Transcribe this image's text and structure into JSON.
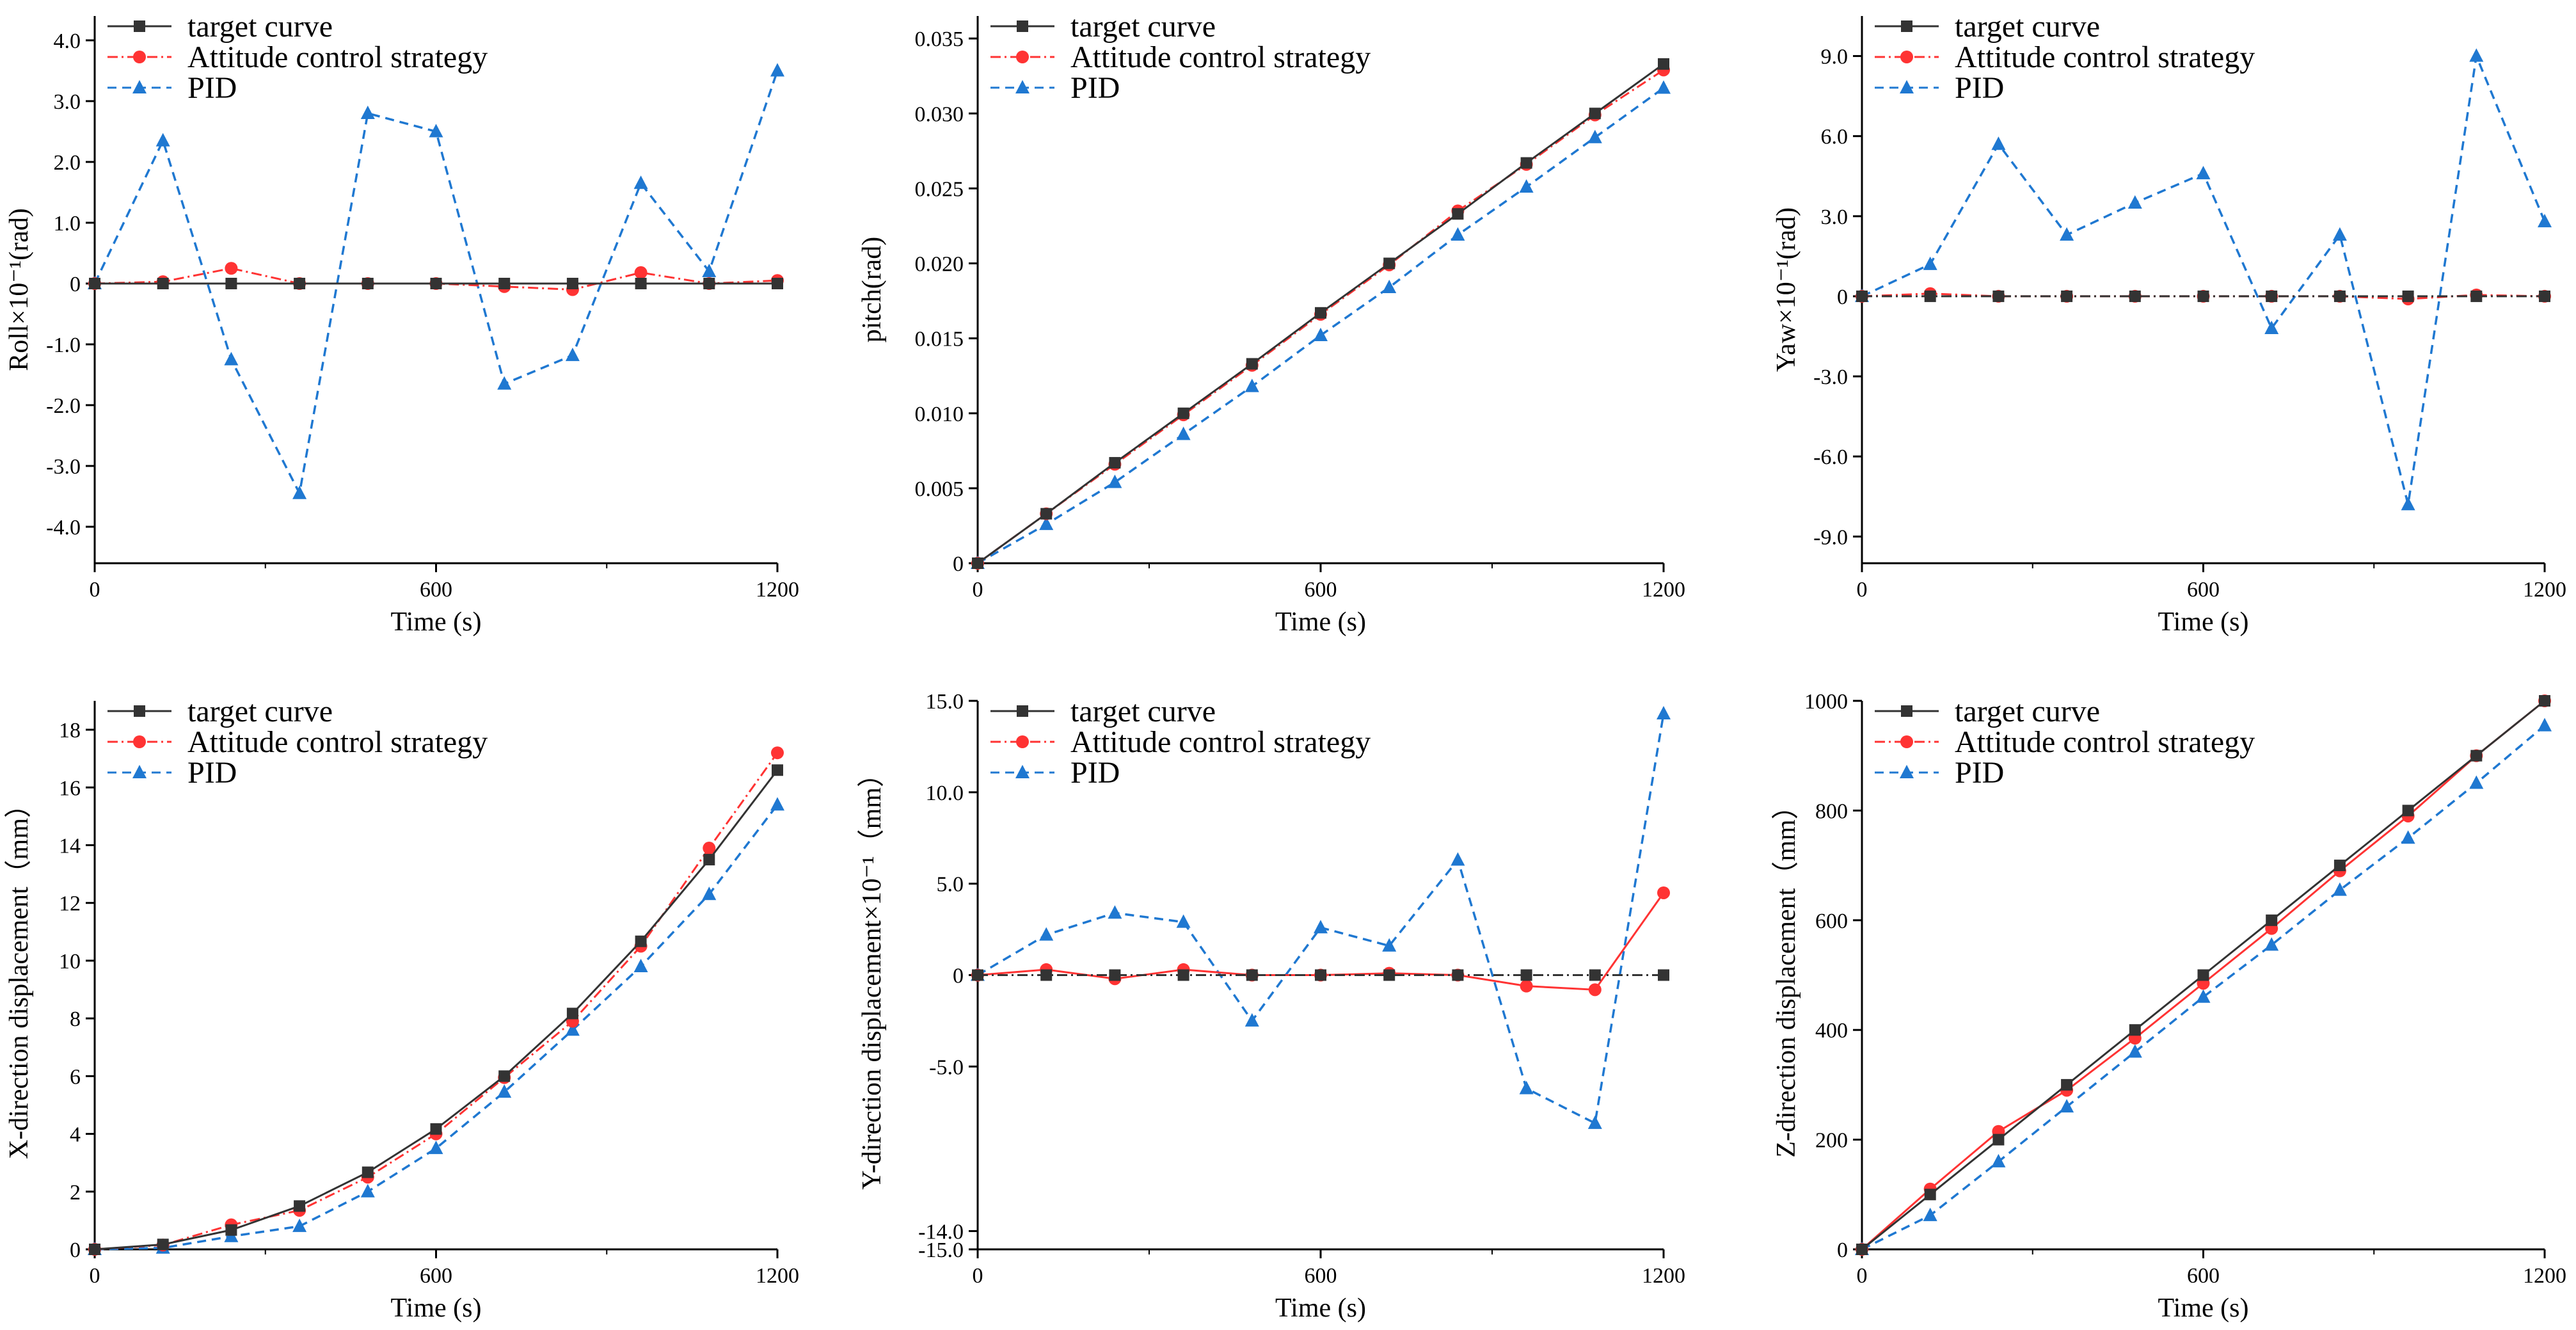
{
  "figure": {
    "colors": {
      "target": "#333333",
      "strategy": "#ff3333",
      "pid": "#1f78d1",
      "axis": "#000000"
    },
    "legend": {
      "target": "target curve",
      "strategy": "Attitude control strategy",
      "pid": "PID"
    }
  },
  "chart_data": [
    {
      "id": "roll",
      "type": "line",
      "title": "",
      "xlabel": "Time (s)",
      "ylabel": "Roll×10⁻¹(rad)",
      "xlim": [
        0,
        1200
      ],
      "ylim": [
        -4.6,
        4.4
      ],
      "xticks": [
        0,
        600,
        1200
      ],
      "xtick_labels": [
        "0",
        "600",
        "1200"
      ],
      "yticks": [
        -4,
        -3,
        -2,
        -1,
        0,
        1,
        2,
        3,
        4
      ],
      "ytick_labels": [
        "-4.0",
        "-3.0",
        "-2.0",
        "-1.0",
        "0",
        "1.0",
        "2.0",
        "3.0",
        "4.0"
      ],
      "x": [
        0,
        120,
        240,
        360,
        480,
        600,
        720,
        840,
        960,
        1080,
        1200
      ],
      "series": [
        {
          "name": "target curve",
          "key": "target",
          "values": [
            0,
            0,
            0,
            0,
            0,
            0,
            0,
            0,
            0,
            0,
            0
          ]
        },
        {
          "name": "Attitude control strategy",
          "key": "strategy",
          "values": [
            0,
            0.03,
            0.25,
            0,
            0,
            0,
            -0.05,
            -0.1,
            0.18,
            0,
            0.05
          ]
        },
        {
          "name": "PID",
          "key": "pid",
          "values": [
            0,
            2.35,
            -1.25,
            -3.45,
            2.8,
            2.5,
            -1.65,
            -1.18,
            1.65,
            0.2,
            3.5
          ]
        }
      ]
    },
    {
      "id": "pitch",
      "type": "line",
      "title": "",
      "xlabel": "Time (s)",
      "ylabel": "pitch(rad)",
      "xlim": [
        0,
        1200
      ],
      "ylim": [
        0,
        0.0365
      ],
      "xticks": [
        0,
        600,
        1200
      ],
      "xtick_labels": [
        "0",
        "600",
        "1200"
      ],
      "yticks": [
        0,
        0.005,
        0.01,
        0.015,
        0.02,
        0.025,
        0.03,
        0.035
      ],
      "ytick_labels": [
        "0",
        "0.005",
        "0.010",
        "0.015",
        "0.020",
        "0.025",
        "0.030",
        "0.035"
      ],
      "x": [
        0,
        120,
        240,
        360,
        480,
        600,
        720,
        840,
        960,
        1080,
        1200
      ],
      "series": [
        {
          "name": "target curve",
          "key": "target",
          "values": [
            0,
            0.0033,
            0.0067,
            0.01,
            0.0133,
            0.0167,
            0.02,
            0.0233,
            0.0267,
            0.03,
            0.0333
          ]
        },
        {
          "name": "Attitude control strategy",
          "key": "strategy",
          "values": [
            0,
            0.0033,
            0.0066,
            0.0099,
            0.0132,
            0.0166,
            0.0199,
            0.0235,
            0.0266,
            0.0299,
            0.0329
          ]
        },
        {
          "name": "PID",
          "key": "pid",
          "values": [
            0,
            0.0026,
            0.0054,
            0.0086,
            0.0118,
            0.0152,
            0.0184,
            0.0219,
            0.0251,
            0.0284,
            0.0317
          ]
        }
      ]
    },
    {
      "id": "yaw",
      "type": "line",
      "title": "",
      "xlabel": "Time (s)",
      "ylabel": "Yaw×10⁻¹(rad)",
      "xlim": [
        0,
        1200
      ],
      "ylim": [
        -10,
        10.5
      ],
      "xticks": [
        0,
        600,
        1200
      ],
      "xtick_labels": [
        "0",
        "600",
        "1200"
      ],
      "yticks": [
        -9,
        -6,
        -3,
        0,
        3,
        6,
        9
      ],
      "ytick_labels": [
        "-9.0",
        "-6.0",
        "-3.0",
        "0",
        "3.0",
        "6.0",
        "9.0"
      ],
      "x": [
        0,
        120,
        240,
        360,
        480,
        600,
        720,
        840,
        960,
        1080,
        1200
      ],
      "series": [
        {
          "name": "target curve",
          "key": "target",
          "values": [
            0,
            0,
            0,
            0,
            0,
            0,
            0,
            0,
            0,
            0,
            0
          ]
        },
        {
          "name": "Attitude control strategy",
          "key": "strategy",
          "values": [
            0,
            0.1,
            0,
            0,
            0,
            0,
            0,
            0,
            -0.1,
            0.05,
            0
          ]
        },
        {
          "name": "PID",
          "key": "pid",
          "values": [
            0,
            1.2,
            5.7,
            2.3,
            3.5,
            4.6,
            -1.2,
            2.3,
            -7.8,
            9.0,
            2.8
          ]
        }
      ]
    },
    {
      "id": "x-displacement",
      "type": "line",
      "title": "",
      "xlabel": "Time (s)",
      "ylabel": "X-direction displacement（mm）",
      "xlim": [
        0,
        1200
      ],
      "ylim": [
        0,
        19
      ],
      "xticks": [
        0,
        600,
        1200
      ],
      "xtick_labels": [
        "0",
        "600",
        "1200"
      ],
      "yticks": [
        0,
        2,
        4,
        6,
        8,
        10,
        12,
        14,
        16,
        18
      ],
      "ytick_labels": [
        "0",
        "2",
        "4",
        "6",
        "8",
        "10",
        "12",
        "14",
        "16",
        "18"
      ],
      "x": [
        0,
        120,
        240,
        360,
        480,
        600,
        720,
        840,
        960,
        1080,
        1200
      ],
      "series": [
        {
          "name": "target curve",
          "key": "target",
          "values": [
            0,
            0.17,
            0.67,
            1.5,
            2.67,
            4.17,
            6.0,
            8.17,
            10.67,
            13.5,
            16.6
          ]
        },
        {
          "name": "Attitude control strategy",
          "key": "strategy",
          "values": [
            0,
            0.15,
            0.85,
            1.35,
            2.5,
            4.0,
            5.95,
            7.9,
            10.5,
            13.9,
            17.2
          ]
        },
        {
          "name": "PID",
          "key": "pid",
          "values": [
            0,
            0.05,
            0.45,
            0.8,
            2.0,
            3.5,
            5.45,
            7.6,
            9.8,
            12.3,
            15.4
          ]
        }
      ]
    },
    {
      "id": "y-displacement",
      "type": "line",
      "title": "",
      "xlabel": "Time (s)",
      "ylabel": "Y-direction displacement×10⁻¹（mm）",
      "xlim": [
        0,
        1200
      ],
      "ylim": [
        -15,
        15
      ],
      "xticks": [
        0,
        600,
        1200
      ],
      "xtick_labels": [
        "0",
        "600",
        "1200"
      ],
      "yticks": [
        -15,
        -14,
        -5,
        0,
        5,
        10,
        15
      ],
      "ytick_labels": [
        "-15.0",
        "-14.0",
        "-5.0",
        "0",
        "5.0",
        "10.0",
        "15.0"
      ],
      "x": [
        0,
        120,
        240,
        360,
        480,
        600,
        720,
        840,
        960,
        1080,
        1200
      ],
      "series": [
        {
          "name": "target curve",
          "key": "target",
          "values": [
            0,
            0,
            0,
            0,
            0,
            0,
            0,
            0,
            0,
            0,
            0
          ]
        },
        {
          "name": "Attitude control strategy",
          "key": "strategy",
          "values": [
            0,
            0.3,
            -0.2,
            0.3,
            0,
            0,
            0.1,
            0,
            -0.6,
            -0.8,
            4.5
          ]
        },
        {
          "name": "PID",
          "key": "pid",
          "values": [
            0,
            2.2,
            3.4,
            2.9,
            -2.5,
            2.6,
            1.6,
            6.3,
            -6.2,
            -8.1,
            14.3
          ]
        }
      ]
    },
    {
      "id": "z-displacement",
      "type": "line",
      "title": "",
      "xlabel": "Time (s)",
      "ylabel": "Z-direction displacement（mm）",
      "xlim": [
        0,
        1200
      ],
      "ylim": [
        0,
        1000
      ],
      "xticks": [
        0,
        600,
        1200
      ],
      "xtick_labels": [
        "0",
        "600",
        "1200"
      ],
      "yticks": [
        0,
        200,
        400,
        600,
        800,
        1000
      ],
      "ytick_labels": [
        "0",
        "200",
        "400",
        "600",
        "800",
        "1000"
      ],
      "x": [
        0,
        120,
        240,
        360,
        480,
        600,
        720,
        840,
        960,
        1080,
        1200
      ],
      "series": [
        {
          "name": "target curve",
          "key": "target",
          "values": [
            0,
            100,
            200,
            300,
            400,
            500,
            600,
            700,
            800,
            900,
            1000
          ]
        },
        {
          "name": "Attitude control strategy",
          "key": "strategy",
          "values": [
            0,
            110,
            215,
            290,
            385,
            485,
            585,
            690,
            790,
            900,
            1000
          ]
        },
        {
          "name": "PID",
          "key": "pid",
          "values": [
            0,
            62,
            160,
            260,
            360,
            460,
            555,
            655,
            750,
            850,
            955
          ]
        }
      ]
    }
  ]
}
